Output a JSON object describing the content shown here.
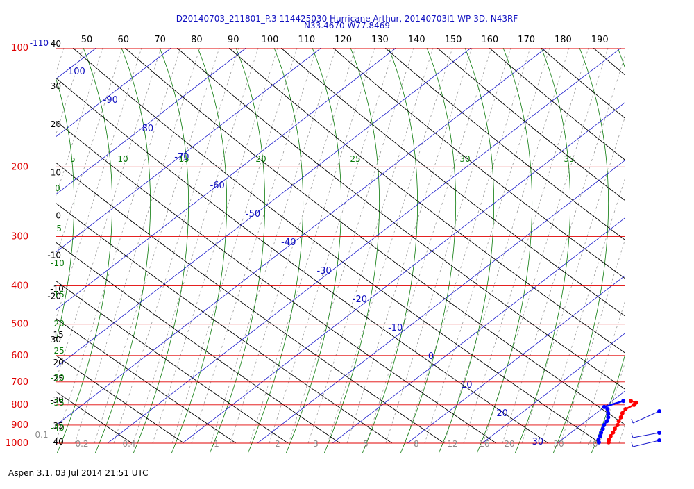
{
  "title_line1": "D20140703_211801_P.3 114425030 Hurricane Arthur, 20140703I1 WP-3D, N43RF",
  "title_line2": "N33.4670 W77.8469",
  "footer": "Aspen 3.1, 03 Jul 2014  21:51 UTC",
  "chart_data": {
    "type": "skew-t log-p sounding",
    "pressure_levels_hPa": [
      "100",
      "200",
      "300",
      "400",
      "500",
      "600",
      "700",
      "800",
      "900",
      "1000"
    ],
    "left_pressure_labels": [
      {
        "p": 100,
        "label": "100"
      },
      {
        "p": 200,
        "label": "200"
      },
      {
        "p": 300,
        "label": "300"
      },
      {
        "p": 400,
        "label": "400"
      },
      {
        "p": 500,
        "label": "500"
      },
      {
        "p": 600,
        "label": "600"
      },
      {
        "p": 700,
        "label": "700"
      },
      {
        "p": 800,
        "label": "800"
      },
      {
        "p": 900,
        "label": "900"
      },
      {
        "p": 1000,
        "label": "1000"
      }
    ],
    "temperature_axis_labels": [
      {
        "p": 100,
        "label": "-110"
      },
      {
        "p": 100,
        "label": "40"
      },
      {
        "p": 128,
        "label": "30"
      },
      {
        "p": 160,
        "label": "20"
      },
      {
        "p": 212,
        "label": "10"
      },
      {
        "p": 272,
        "label": "0"
      },
      {
        "p": 343,
        "label": "-10"
      },
      {
        "p": 435,
        "label": "-20"
      },
      {
        "p": 561,
        "label": "-30"
      }
    ],
    "top_axis_labels": [
      "50",
      "60",
      "70",
      "80",
      "90",
      "100",
      "110",
      "120",
      "130",
      "140",
      "150",
      "160",
      "170",
      "180",
      "190"
    ],
    "isotherm_labels": [
      "-100",
      "-90",
      "-80",
      "-70",
      "-60",
      "-50",
      "-40",
      "-30",
      "-20",
      "-10",
      "0",
      "10",
      "20",
      "30"
    ],
    "dry_adiabat_labels": [
      "-10",
      "-15",
      "-20",
      "-25",
      "-30",
      "-35",
      "-40"
    ],
    "moist_adiabat_labels": [
      "5",
      "10",
      "15",
      "20",
      "25",
      "30",
      "35",
      "0",
      "-5",
      "-10",
      "-15",
      "-20",
      "-25",
      "-30",
      "-35",
      "-40"
    ],
    "mixing_ratio_labels": [
      "0.1",
      "0.2",
      "0.4",
      "1",
      "2",
      "3",
      "5",
      "8",
      "12",
      "16",
      "20",
      "30",
      "40"
    ],
    "series": [
      {
        "name": "Temperature",
        "color": "#ff0000",
        "points": [
          {
            "p": 782,
            "t": 22.5
          },
          {
            "p": 790,
            "t": 23.5
          },
          {
            "p": 800,
            "t": 23.6
          },
          {
            "p": 820,
            "t": 23.2
          },
          {
            "p": 840,
            "t": 23.5
          },
          {
            "p": 860,
            "t": 24.0
          },
          {
            "p": 880,
            "t": 24.4
          },
          {
            "p": 900,
            "t": 24.9
          },
          {
            "p": 920,
            "t": 25.2
          },
          {
            "p": 940,
            "t": 25.6
          },
          {
            "p": 960,
            "t": 25.9
          },
          {
            "p": 980,
            "t": 26.3
          },
          {
            "p": 995,
            "t": 26.7
          }
        ]
      },
      {
        "name": "Dewpoint",
        "color": "#0000ff",
        "points": [
          {
            "p": 782,
            "t": 21.5
          },
          {
            "p": 810,
            "t": 20.0
          },
          {
            "p": 820,
            "t": 20.8
          },
          {
            "p": 840,
            "t": 21.6
          },
          {
            "p": 860,
            "t": 22.3
          },
          {
            "p": 880,
            "t": 22.8
          },
          {
            "p": 900,
            "t": 23.1
          },
          {
            "p": 920,
            "t": 23.6
          },
          {
            "p": 940,
            "t": 24.0
          },
          {
            "p": 960,
            "t": 24.5
          },
          {
            "p": 980,
            "t": 24.9
          },
          {
            "p": 995,
            "t": 25.4
          }
        ]
      }
    ],
    "wind_barbs": [
      {
        "p": 850
      },
      {
        "p": 958
      },
      {
        "p": 995
      }
    ]
  }
}
